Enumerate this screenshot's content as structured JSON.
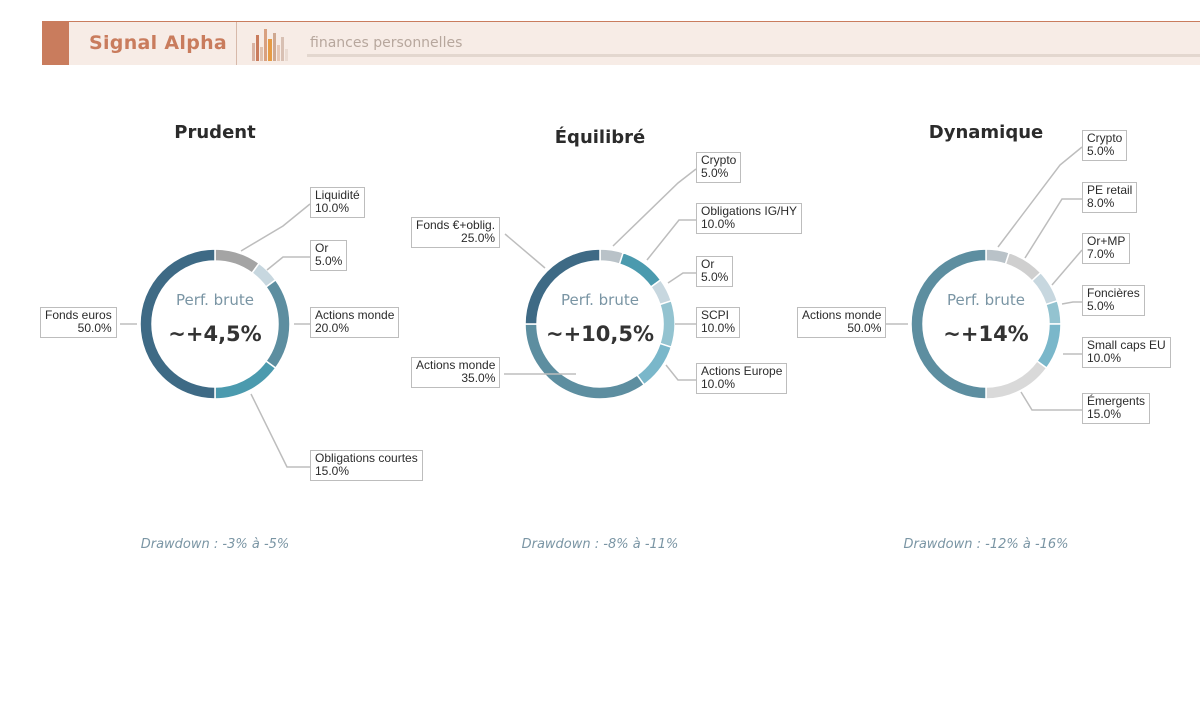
{
  "header": {
    "brand": "Signal Alpha",
    "subtitle": "finances personnelles",
    "brand_color": "#c97c5d"
  },
  "center_label": "Perf. brute",
  "chart_data": [
    {
      "type": "pie",
      "style": "donut",
      "title": "Prudent",
      "center_value": "~+4,5%",
      "drawdown": "Drawdown : -3% à -5%",
      "slices": [
        {
          "label": "Fonds euros",
          "value": 50.0,
          "pct": "50.0%",
          "color": "#3e6a85"
        },
        {
          "label": "Liquidité",
          "value": 10.0,
          "pct": "10.0%",
          "color": "#a4a4a4"
        },
        {
          "label": "Or",
          "value": 5.0,
          "pct": "5.0%",
          "color": "#c7d7df"
        },
        {
          "label": "Actions monde",
          "value": 20.0,
          "pct": "20.0%",
          "color": "#5d8ea0"
        },
        {
          "label": "Obligations courtes",
          "value": 15.0,
          "pct": "15.0%",
          "color": "#4b9aae"
        }
      ]
    },
    {
      "type": "pie",
      "style": "donut",
      "title": "Équilibré",
      "center_value": "~+10,5%",
      "drawdown": "Drawdown : -8% à -11%",
      "slices": [
        {
          "label": "Fonds €+oblig.",
          "value": 25.0,
          "pct": "25.0%",
          "color": "#3e6a85"
        },
        {
          "label": "Crypto",
          "value": 5.0,
          "pct": "5.0%",
          "color": "#b9c2c8"
        },
        {
          "label": "Obligations IG/HY",
          "value": 10.0,
          "pct": "10.0%",
          "color": "#4b9aae"
        },
        {
          "label": "Or",
          "value": 5.0,
          "pct": "5.0%",
          "color": "#c7d7df"
        },
        {
          "label": "SCPI",
          "value": 10.0,
          "pct": "10.0%",
          "color": "#93c3d0"
        },
        {
          "label": "Actions Europe",
          "value": 10.0,
          "pct": "10.0%",
          "color": "#7ab7ca"
        },
        {
          "label": "Actions monde",
          "value": 35.0,
          "pct": "35.0%",
          "color": "#5d8ea0"
        }
      ]
    },
    {
      "type": "pie",
      "style": "donut",
      "title": "Dynamique",
      "center_value": "~+14%",
      "drawdown": "Drawdown : -12% à -16%",
      "slices": [
        {
          "label": "Actions monde",
          "value": 50.0,
          "pct": "50.0%",
          "color": "#5d8ea0"
        },
        {
          "label": "Crypto",
          "value": 5.0,
          "pct": "5.0%",
          "color": "#b9c2c8"
        },
        {
          "label": "PE retail",
          "value": 8.0,
          "pct": "8.0%",
          "color": "#cfcfcf"
        },
        {
          "label": "Or+MP",
          "value": 7.0,
          "pct": "7.0%",
          "color": "#c7d7df"
        },
        {
          "label": "Foncières",
          "value": 5.0,
          "pct": "5.0%",
          "color": "#93c3d0"
        },
        {
          "label": "Small caps EU",
          "value": 10.0,
          "pct": "10.0%",
          "color": "#7ab7ca"
        },
        {
          "label": "Émergents",
          "value": 15.0,
          "pct": "15.0%",
          "color": "#d9d9d9"
        }
      ]
    }
  ]
}
